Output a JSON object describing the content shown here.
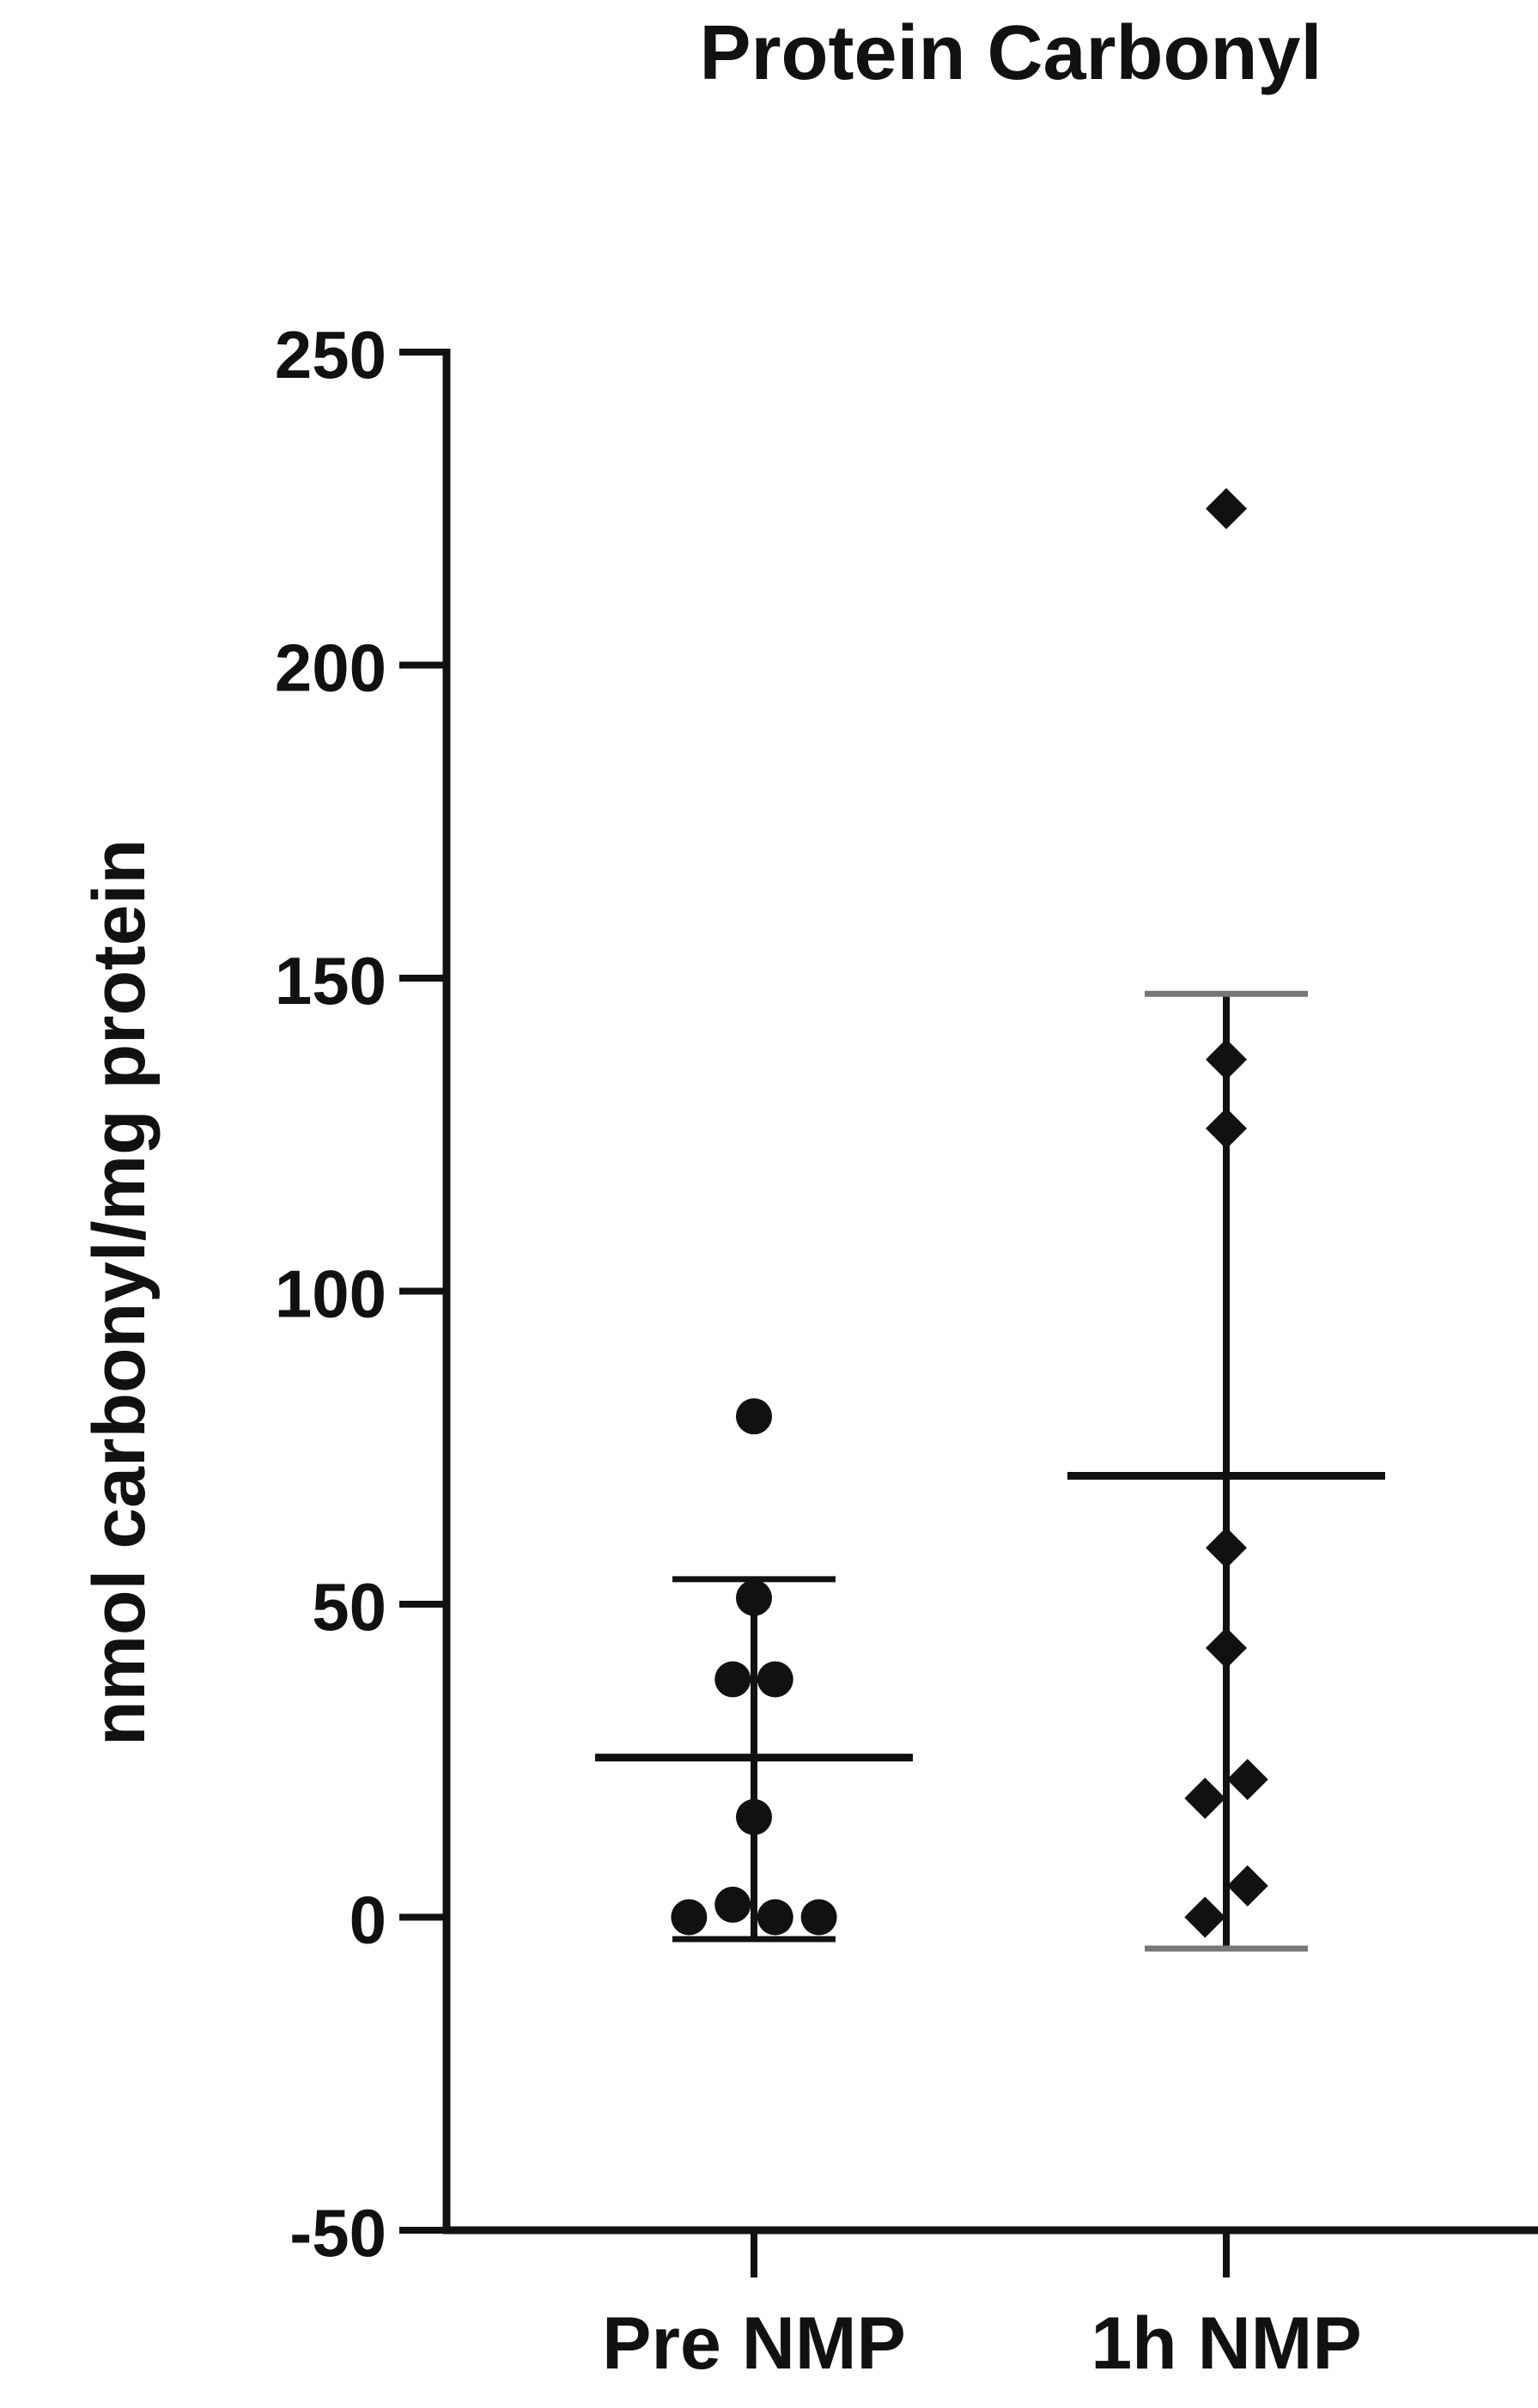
{
  "chart_data": {
    "type": "scatter",
    "title": "Protein Carbonyl",
    "ylabel": "nmol carbonyl/mg protein",
    "xlabel": "",
    "categories": [
      "Pre NMP",
      "1h NMP"
    ],
    "ylim": [
      -50,
      250
    ],
    "yticks": [
      -50,
      0,
      50,
      100,
      150,
      200,
      250
    ],
    "yticklabels": [
      "-50",
      "0",
      "50",
      "100",
      "150",
      "200",
      "250"
    ],
    "grid": false,
    "series": [
      {
        "category": "Pre NMP",
        "marker": "circle",
        "points": [
          {
            "offset": 0.0,
            "value": 80
          },
          {
            "offset": 0.0,
            "value": 51
          },
          {
            "offset": -0.18,
            "value": 38
          },
          {
            "offset": 0.18,
            "value": 38
          },
          {
            "offset": 0.0,
            "value": 16
          },
          {
            "offset": -0.55,
            "value": 0
          },
          {
            "offset": -0.18,
            "value": 2
          },
          {
            "offset": 0.18,
            "value": 0
          },
          {
            "offset": 0.55,
            "value": 0
          }
        ],
        "mean": 25.5,
        "error_upper": 54,
        "error_lower": -3.5
      },
      {
        "category": "1h NMP",
        "marker": "diamond",
        "points": [
          {
            "offset": 0.0,
            "value": 225
          },
          {
            "offset": 0.0,
            "value": 137
          },
          {
            "offset": 0.0,
            "value": 126
          },
          {
            "offset": 0.0,
            "value": 59
          },
          {
            "offset": 0.0,
            "value": 43
          },
          {
            "offset": -0.18,
            "value": 19
          },
          {
            "offset": 0.18,
            "value": 22
          },
          {
            "offset": 0.18,
            "value": 5
          },
          {
            "offset": -0.18,
            "value": 0
          }
        ],
        "mean": 70.5,
        "error_upper": 147.5,
        "error_lower": -5
      }
    ],
    "colors": {
      "marker": "#111111",
      "mean_line": "#111111",
      "error_bar": "#111111",
      "error_cap": "#777777",
      "axis": "#111111"
    }
  }
}
